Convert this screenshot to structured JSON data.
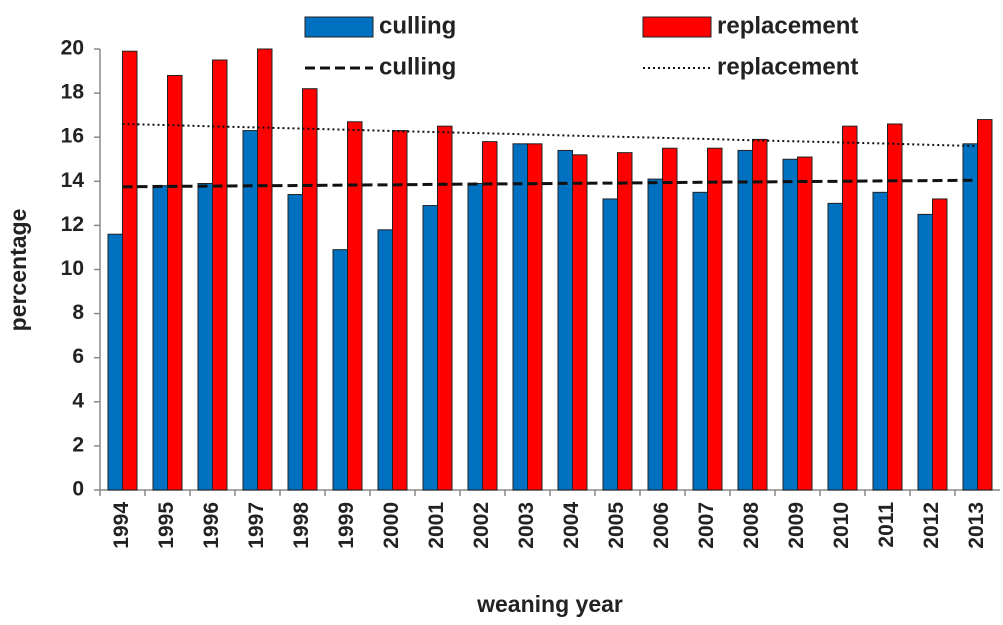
{
  "chart_data": {
    "type": "bar",
    "x_label": "weaning year",
    "y_label": "percentage",
    "categories": [
      "1994",
      "1995",
      "1996",
      "1997",
      "1998",
      "1999",
      "2000",
      "2001",
      "2002",
      "2003",
      "2004",
      "2005",
      "2006",
      "2007",
      "2008",
      "2009",
      "2010",
      "2011",
      "2012",
      "2013"
    ],
    "series": [
      {
        "name": "culling",
        "type": "bar",
        "color": "#0070c0",
        "values": [
          11.6,
          13.8,
          13.9,
          16.3,
          13.4,
          10.9,
          11.8,
          12.9,
          13.9,
          15.7,
          15.4,
          13.2,
          14.1,
          13.5,
          15.4,
          15.0,
          13.0,
          13.5,
          12.5,
          15.7
        ]
      },
      {
        "name": "replacement",
        "type": "bar",
        "color": "#ff0000",
        "values": [
          19.9,
          18.8,
          19.5,
          20.0,
          18.2,
          16.7,
          16.3,
          16.5,
          15.8,
          15.7,
          15.2,
          15.3,
          15.5,
          15.5,
          15.9,
          15.1,
          16.5,
          16.6,
          13.2,
          16.8
        ]
      },
      {
        "name": "culling",
        "type": "line",
        "style": "dashed",
        "color": "#111111",
        "values": [
          13.75,
          13.77,
          13.78,
          13.8,
          13.81,
          13.83,
          13.84,
          13.86,
          13.88,
          13.89,
          13.91,
          13.92,
          13.94,
          13.96,
          13.97,
          13.99,
          14.0,
          14.02,
          14.03,
          14.05
        ]
      },
      {
        "name": "replacement",
        "type": "line",
        "style": "dotted",
        "color": "#111111",
        "values": [
          16.6,
          16.55,
          16.49,
          16.44,
          16.39,
          16.34,
          16.28,
          16.23,
          16.18,
          16.13,
          16.07,
          16.02,
          15.97,
          15.92,
          15.86,
          15.81,
          15.76,
          15.71,
          15.65,
          15.6
        ]
      }
    ],
    "ylim": [
      0,
      20
    ],
    "yticks": [
      0,
      2,
      4,
      6,
      8,
      10,
      12,
      14,
      16,
      18,
      20
    ],
    "grid": false,
    "legend": "top"
  }
}
